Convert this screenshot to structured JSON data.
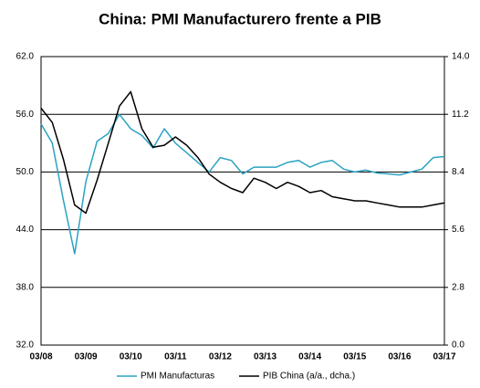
{
  "chart_data": {
    "type": "line",
    "title": "China: PMI Manufacturero frente a PIB",
    "categories": [
      "03/08",
      null,
      null,
      null,
      "03/09",
      null,
      null,
      null,
      "03/10",
      null,
      null,
      null,
      "03/11",
      null,
      null,
      null,
      "03/12",
      null,
      null,
      null,
      "03/13",
      null,
      null,
      null,
      "03/14",
      null,
      null,
      null,
      "03/15",
      null,
      null,
      null,
      "03/16",
      null,
      null,
      null,
      "03/17"
    ],
    "series": [
      {
        "name": "PMI Manufacturas",
        "color": "#2aa3c2",
        "values": [
          55.0,
          53.0,
          47.0,
          41.5,
          49.0,
          53.2,
          54.0,
          56.0,
          54.5,
          53.8,
          52.5,
          54.5,
          53.0,
          52.0,
          51.0,
          50.0,
          51.5,
          51.2,
          49.8,
          50.5,
          50.5,
          50.5,
          51.0,
          51.2,
          50.5,
          51.0,
          51.2,
          50.3,
          50.0,
          50.2,
          49.9,
          49.8,
          49.7,
          50.0,
          50.3,
          51.5,
          51.6
        ]
      },
      {
        "name": "PIB China (a/a., dcha.)",
        "color": "#000000",
        "axis": "y2",
        "values": [
          11.5,
          10.8,
          9.0,
          6.8,
          6.4,
          8.0,
          9.8,
          11.6,
          12.3,
          10.5,
          9.6,
          9.7,
          10.1,
          9.7,
          9.1,
          8.3,
          7.9,
          7.6,
          7.4,
          8.1,
          7.9,
          7.6,
          7.9,
          7.7,
          7.4,
          7.5,
          7.2,
          7.1,
          7.0,
          7.0,
          6.9,
          6.8,
          6.7,
          6.7,
          6.7,
          6.8,
          6.9
        ]
      }
    ],
    "ylim": [
      32,
      62
    ],
    "yticks": [
      {
        "value": 32,
        "label": "32.0"
      },
      {
        "value": 38,
        "label": "38.0"
      },
      {
        "value": 44,
        "label": "44.0"
      },
      {
        "value": 50,
        "label": "50.0"
      },
      {
        "value": 56,
        "label": "56.0"
      },
      {
        "value": 62,
        "label": "62.0"
      }
    ],
    "y2lim": [
      0,
      14
    ],
    "y2ticks": [
      {
        "value": 0,
        "label": "0.0"
      },
      2.8,
      5.6,
      8.4,
      11.2,
      {
        "value": 14,
        "label": "14.0"
      }
    ],
    "grid": true,
    "legend": "bottom"
  }
}
